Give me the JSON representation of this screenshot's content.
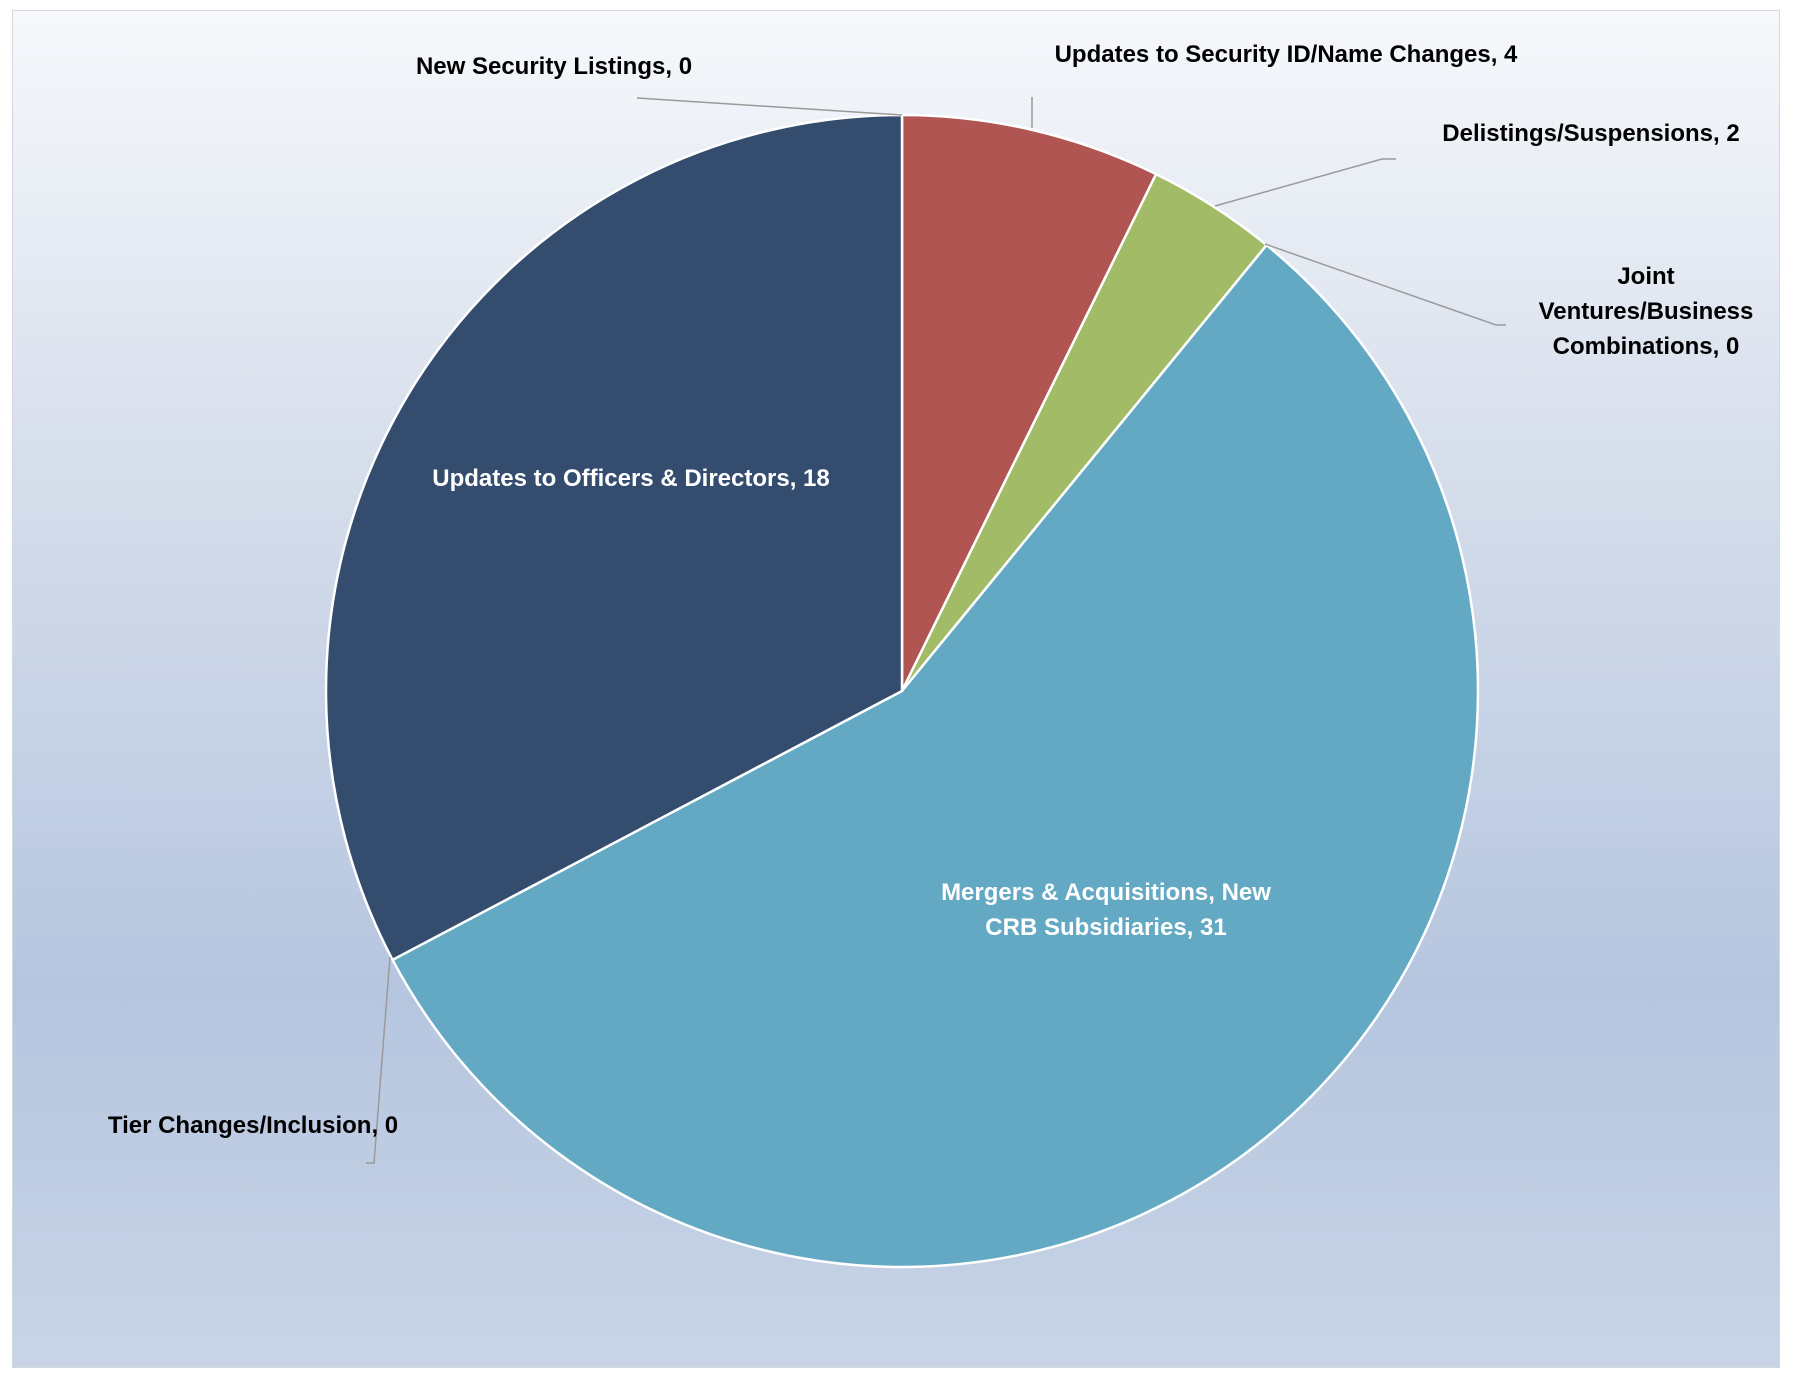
{
  "chart_data": {
    "type": "pie",
    "categories": [
      "New Security Listings",
      "Updates to Security ID/Name Changes",
      "Delistings/Suspensions",
      "Joint Ventures/Business Combinations",
      "Mergers & Acquisitions, New CRB Subsidiaries",
      "Tier Changes/Inclusion",
      "Updates to Officers & Directors"
    ],
    "values": [
      0,
      4,
      2,
      0,
      31,
      0,
      18
    ],
    "colors": [
      "#4f81bd",
      "#b05551",
      "#a1bb67",
      "#8064a2",
      "#64a9c3",
      "#f79646",
      "#344d6f"
    ],
    "labels": [
      {
        "lines": [
          "New Security Listings, 0"
        ]
      },
      {
        "lines": [
          "Updates to Security ID/Name Changes, 4"
        ]
      },
      {
        "lines": [
          "Delistings/Suspensions, 2"
        ]
      },
      {
        "lines": [
          "Joint",
          "Ventures/Business",
          "Combinations, 0"
        ]
      },
      {
        "lines": [
          "Mergers & Acquisitions, New",
          "CRB Subsidiaries, 31"
        ]
      },
      {
        "lines": [
          "Tier Changes/Inclusion, 0"
        ]
      },
      {
        "lines": [
          "Updates to Officers & Directors, 18"
        ]
      }
    ]
  }
}
